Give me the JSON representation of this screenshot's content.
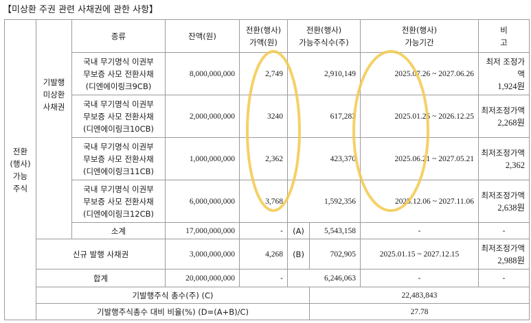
{
  "title": "【미상환 주권 관련 사채권에 관한 사항】",
  "header": {
    "type": "종류",
    "balance": "잔액(원)",
    "conv_price_1": "전환(행사)",
    "conv_price_2": "가액(원)",
    "conv_shares_1": "전환(행사)",
    "conv_shares_2": "가능주식수(주)",
    "conv_period_1": "전환(행사)",
    "conv_period_2": "가능기간",
    "note_1": "비",
    "note_2": "고"
  },
  "left_group": [
    "전환",
    "(행사)",
    "가능",
    "주식"
  ],
  "sub_group": [
    "기발행",
    "미상환",
    "사채권"
  ],
  "bonds": [
    {
      "name": [
        "국내 무기명식 이권부",
        "무보증 사모 전환사채",
        "(디엔에이링크9CB)"
      ],
      "balance": "8,000,000,000",
      "price": "2,749",
      "shares": "2,910,149",
      "period": "2025.07.26 ~ 2027.06.26",
      "note": [
        "최저 조정가액",
        "1,924원"
      ]
    },
    {
      "name": [
        "국내 무기명식 이권부",
        "무보증 사모 전환사채",
        "(디엔에이링크10CB)"
      ],
      "balance": "2,000,000,000",
      "price": "3240",
      "shares": "617,283",
      "period": "2025.01.25 ~ 2026.12.25",
      "note": [
        "최저조정가액",
        "2,268원"
      ]
    },
    {
      "name": [
        "국내 무기명식 이권부",
        "무보증 사모 전환사채",
        "(디엔에이링크11CB)"
      ],
      "balance": "1,000,000,000",
      "price": "2,362",
      "shares": "423,370",
      "period": "2025.06.21 ~ 2027.05.21",
      "note": [
        "최저조정가액",
        "2,362"
      ]
    },
    {
      "name": [
        "국내 무기명식 이권부",
        "무보증 사모 전환사채",
        "(디엔에이링크12CB)"
      ],
      "balance": "6,000,000,000",
      "price": "3,768",
      "shares": "1,592,356",
      "period": "2025.12.06 ~ 2027.11.06",
      "note": [
        "최저조정가액",
        "2,638원"
      ]
    }
  ],
  "subtotal": {
    "label": "소계",
    "balance": "17,000,000,000",
    "price": "-",
    "mark": "(A)",
    "shares": "5,543,158",
    "period": "-",
    "note": "-"
  },
  "new_issue": {
    "label": "신규 발행 사채권",
    "balance": "3,000,000,000",
    "price": "4,268",
    "mark": "(B)",
    "shares": "702,905",
    "period": "2025.01.15 ~ 2027.12.15",
    "note": [
      "최저조정가액",
      "2,988원"
    ]
  },
  "total": {
    "label": "합계",
    "balance": "20,000,000,000",
    "price": "-",
    "shares": "6,246,063",
    "period": "-",
    "note": "-"
  },
  "issued_total": {
    "label": "기발행주식 총수(주) (C)",
    "value": "22,483,843"
  },
  "ratio": {
    "label": "기발행주식총수 대비 비율(%) (D=(A+B)/C)",
    "value": "27.78"
  },
  "highlight_color": "#f2c94c"
}
